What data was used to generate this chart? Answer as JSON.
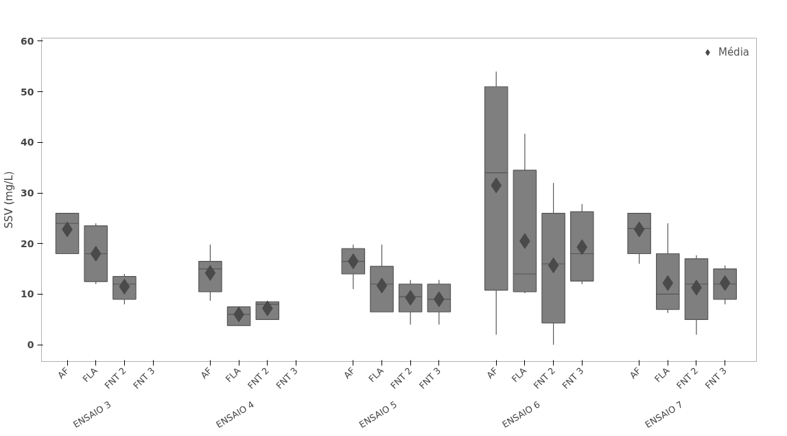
{
  "chart_data": {
    "type": "box",
    "ylabel": "SSV (mg/L)",
    "categories": [
      "AF",
      "FLA",
      "FNT 2",
      "FNT 3",
      null,
      "AF",
      "FLA",
      "FNT 2",
      "FNT 3",
      null,
      "AF",
      "FLA",
      "FNT 2",
      "FNT 3",
      null,
      "AF",
      "FLA",
      "FNT 2",
      "FNT 3",
      null,
      "AF",
      "FLA",
      "FNT 2",
      "FNT 3"
    ],
    "annotations": [
      "ENSAIO 3",
      "ENSAIO 4",
      "ENSAIO 5",
      "ENSAIO 6",
      "ENSAIO 7"
    ],
    "color": "#7f7f7f",
    "boxes": [
      {
        "low": 18,
        "q1": 18,
        "median": 24,
        "q3": 26,
        "high": 26
      },
      {
        "low": 12,
        "q1": 12.5,
        "median": 18,
        "q3": 23.5,
        "high": 24
      },
      {
        "low": 8,
        "q1": 9,
        "median": 12,
        "q3": 13.5,
        "high": 14
      },
      null,
      null,
      {
        "low": 8.7,
        "q1": 10.5,
        "median": 15,
        "q3": 16.5,
        "high": 19.8
      },
      {
        "low": 3.8,
        "q1": 3.8,
        "median": 6,
        "q3": 7.5,
        "high": 7.5
      },
      {
        "low": 5,
        "q1": 5,
        "median": 8,
        "q3": 8.5,
        "high": 8.5
      },
      null,
      null,
      {
        "low": 11,
        "q1": 14,
        "median": 16.5,
        "q3": 19,
        "high": 19.8
      },
      {
        "low": 6.5,
        "q1": 6.5,
        "median": 12,
        "q3": 15.5,
        "high": 19.8
      },
      {
        "low": 4,
        "q1": 6.5,
        "median": 9.5,
        "q3": 12,
        "high": 12.8
      },
      {
        "low": 4,
        "q1": 6.5,
        "median": 9,
        "q3": 12,
        "high": 12.8
      },
      null,
      {
        "low": 2,
        "q1": 10.8,
        "median": 34,
        "q3": 51,
        "high": 54
      },
      {
        "low": 10.2,
        "q1": 10.5,
        "median": 14,
        "q3": 34.5,
        "high": 41.7
      },
      {
        "low": 0,
        "q1": 4.3,
        "median": 16,
        "q3": 26,
        "high": 32
      },
      {
        "low": 12,
        "q1": 12.6,
        "median": 18,
        "q3": 26.3,
        "high": 27.8
      },
      null,
      {
        "low": 16,
        "q1": 18,
        "median": 23,
        "q3": 26,
        "high": 26
      },
      {
        "low": 6.3,
        "q1": 7,
        "median": 10,
        "q3": 18,
        "high": 24
      },
      {
        "low": 2,
        "q1": 5,
        "median": 12,
        "q3": 17,
        "high": 17.7
      },
      {
        "low": 8,
        "q1": 9,
        "median": 12,
        "q3": 15,
        "high": 15.7
      }
    ],
    "series": [
      {
        "name": "Média",
        "type": "scatter",
        "color": "#4a4a4a",
        "values": [
          22.8,
          18,
          11.5,
          null,
          null,
          14.2,
          6,
          7.2,
          null,
          null,
          16.5,
          11.7,
          9.3,
          9,
          null,
          31.5,
          20.5,
          15.7,
          19.3,
          null,
          22.8,
          12.2,
          11.3,
          12.2
        ]
      }
    ],
    "marker": "diamond",
    "ylim": [
      -3.3,
      60.6
    ],
    "yticks": [
      0,
      10,
      20,
      30,
      40,
      50,
      60
    ],
    "grid": false,
    "legend": "top right"
  }
}
